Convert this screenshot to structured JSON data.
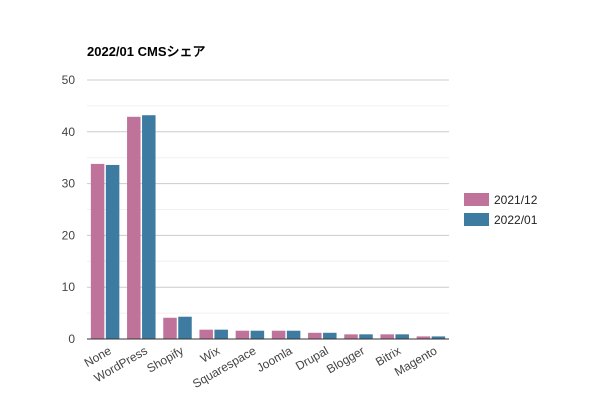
{
  "chart_data": {
    "type": "bar",
    "title": "2022/01 CMSシェア",
    "xlabel": "",
    "ylabel": "",
    "categories": [
      "None",
      "WordPress",
      "Shopify",
      "Wix",
      "Squarespace",
      "Joomla",
      "Drupal",
      "Blogger",
      "Bitrix",
      "Magento"
    ],
    "series": [
      {
        "name": "2021/12",
        "color": "#c0739a",
        "values": [
          33.8,
          42.9,
          4.1,
          1.8,
          1.6,
          1.6,
          1.2,
          0.9,
          0.9,
          0.5
        ]
      },
      {
        "name": "2022/01",
        "color": "#3e7ba0",
        "values": [
          33.6,
          43.2,
          4.3,
          1.8,
          1.6,
          1.6,
          1.2,
          0.9,
          0.9,
          0.5
        ]
      }
    ],
    "ylim": [
      0,
      50
    ],
    "yticks": [
      0,
      10,
      20,
      30,
      40,
      50
    ],
    "grid": true,
    "legend_position": "right"
  }
}
